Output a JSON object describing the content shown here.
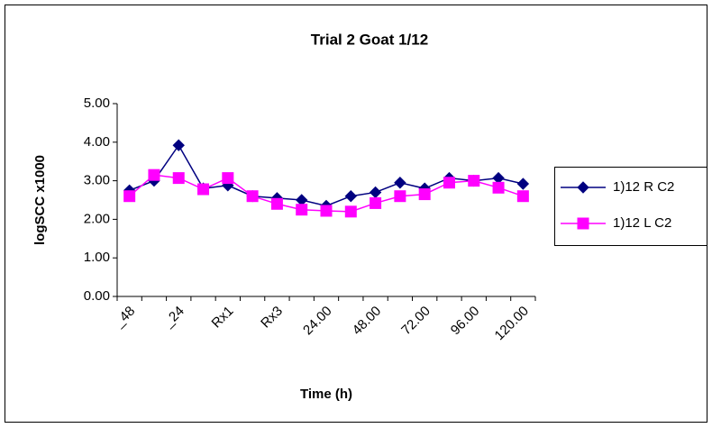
{
  "chart_data": {
    "type": "line",
    "title": "Trial 2 Goat 1/12",
    "x_label": "Time (h)",
    "y_label": "logSCC x1000",
    "categories": [
      "_48",
      null,
      "_24",
      null,
      "Rx1",
      null,
      "Rx3",
      null,
      "24.00",
      null,
      "48.00",
      null,
      "72.00",
      null,
      "96.00",
      null,
      "120.00"
    ],
    "series": [
      {
        "name": "1)12 R C2",
        "color": "#000080",
        "marker": "diamond",
        "values": [
          2.75,
          3.0,
          3.92,
          2.8,
          2.88,
          2.6,
          2.55,
          2.5,
          2.35,
          2.6,
          2.7,
          2.95,
          2.8,
          3.07,
          3.0,
          3.07,
          2.92
        ]
      },
      {
        "name": "1)12 L C2",
        "color": "#ff00ff",
        "marker": "square",
        "values": [
          2.6,
          3.15,
          3.07,
          2.78,
          3.07,
          2.6,
          2.4,
          2.25,
          2.22,
          2.2,
          2.42,
          2.6,
          2.65,
          2.95,
          3.0,
          2.82,
          2.6
        ]
      }
    ],
    "ylim": [
      0,
      5
    ],
    "yticks": [
      {
        "value": 0,
        "label": "0.00"
      },
      {
        "value": 1,
        "label": "1.00"
      },
      {
        "value": 2,
        "label": "2.00"
      },
      {
        "value": 3,
        "label": "3.00"
      },
      {
        "value": 4,
        "label": "4.00"
      },
      {
        "value": 5,
        "label": "5.00"
      }
    ],
    "legend": "right"
  }
}
